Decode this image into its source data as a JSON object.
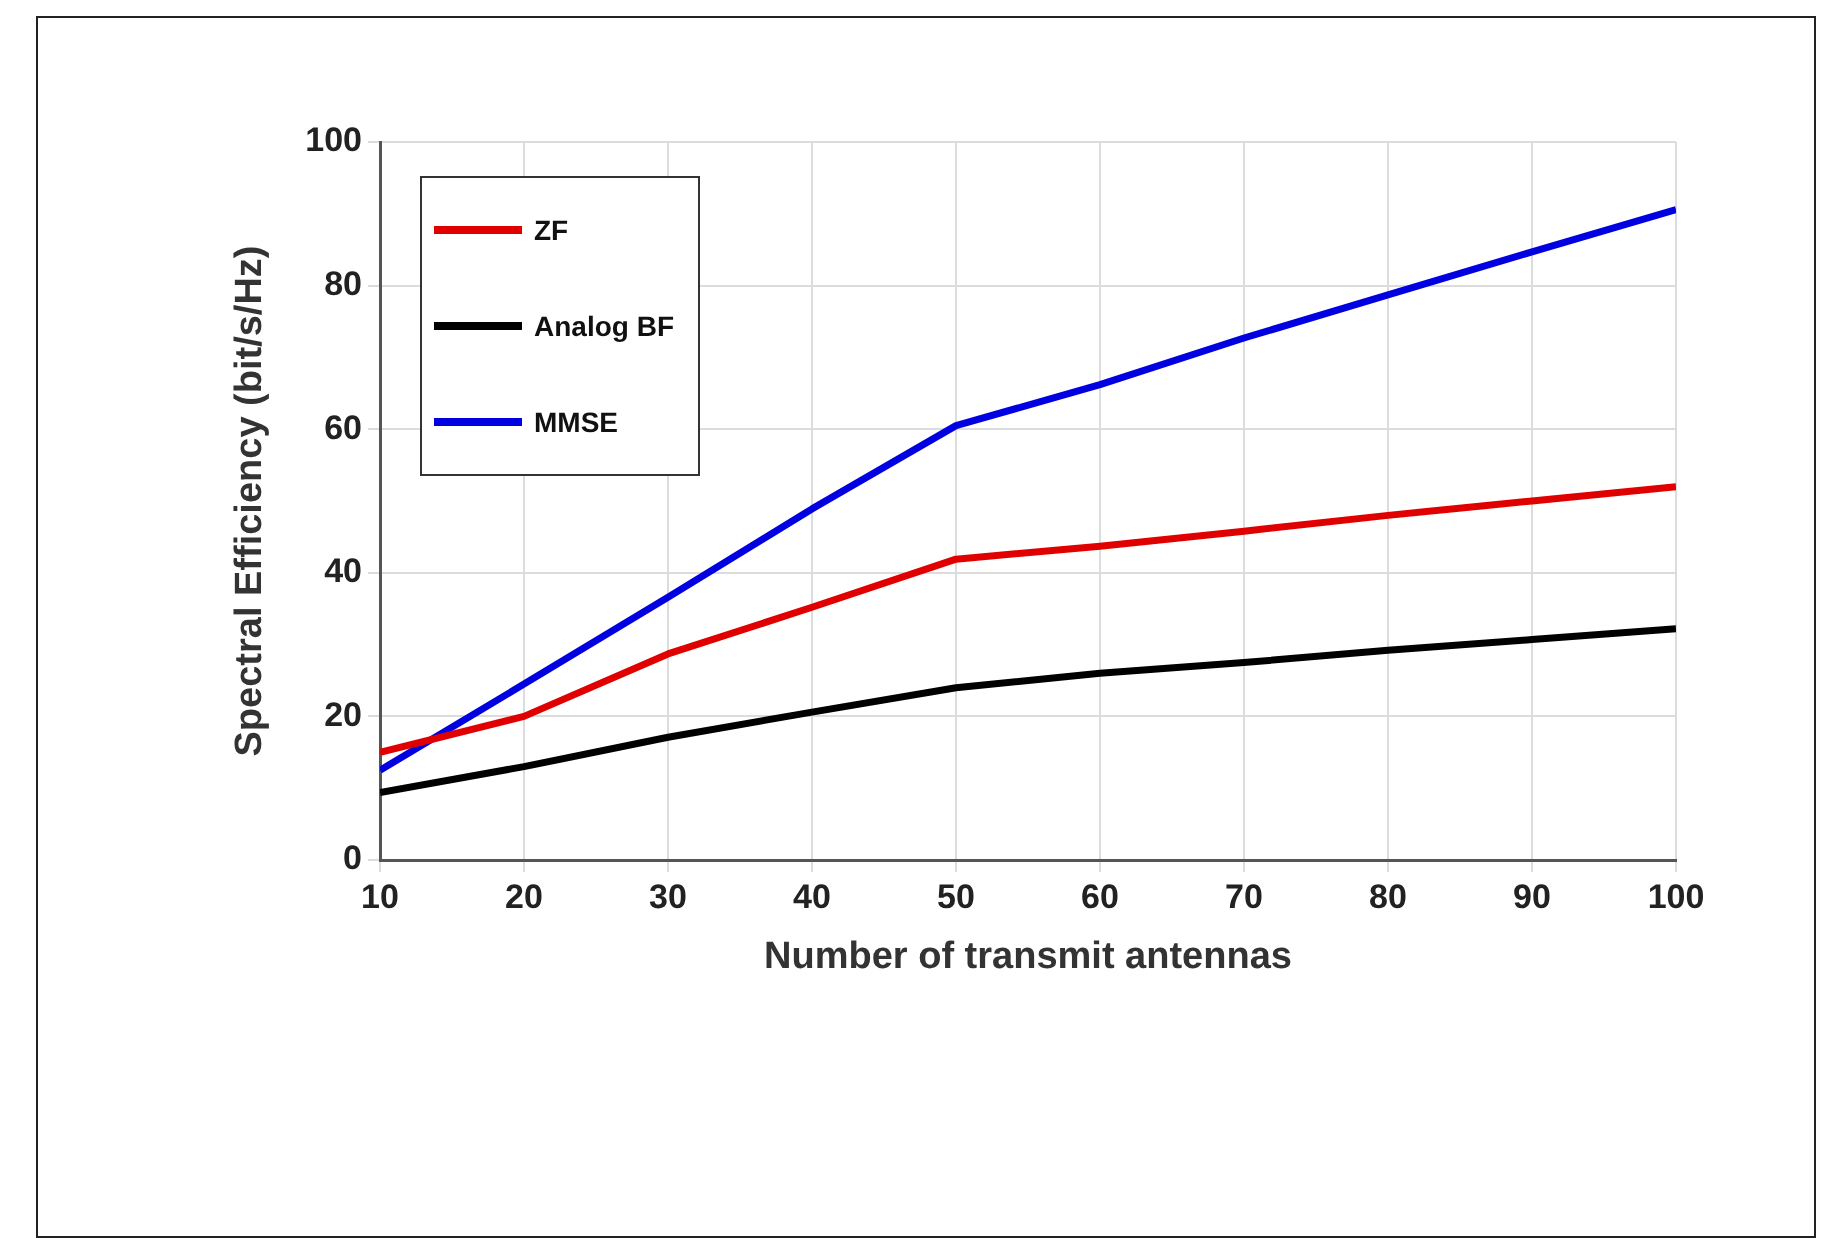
{
  "chart_data": {
    "type": "line",
    "xlabel": "Number of transmit antennas",
    "ylabel": "Spectral Efficiency (bit/s/Hz)",
    "x": [
      10,
      20,
      30,
      40,
      50,
      60,
      70,
      80,
      90,
      100
    ],
    "series": [
      {
        "name": "ZF",
        "color": "#e00000",
        "values": [
          15,
          20,
          28.7,
          35.2,
          41.9,
          43.7,
          45.8,
          48,
          50,
          52
        ]
      },
      {
        "name": "Analog BF",
        "color": "#000000",
        "values": [
          9.4,
          13,
          17.1,
          20.6,
          24,
          26,
          27.5,
          29.2,
          30.7,
          32.2
        ]
      },
      {
        "name": "MMSE",
        "color": "#0000e0",
        "values": [
          12.5,
          24.5,
          36.6,
          48.9,
          60.5,
          66.2,
          72.7,
          78.7,
          84.7,
          90.6
        ]
      }
    ],
    "xlim": [
      10,
      100
    ],
    "xticks": [
      10,
      20,
      30,
      40,
      50,
      60,
      70,
      80,
      90,
      100
    ],
    "ylim": [
      0,
      100
    ],
    "yticks": [
      0,
      20,
      40,
      60,
      80,
      100
    ],
    "grid": true,
    "legend": "top left",
    "marker": "none",
    "line_style": "solid"
  }
}
